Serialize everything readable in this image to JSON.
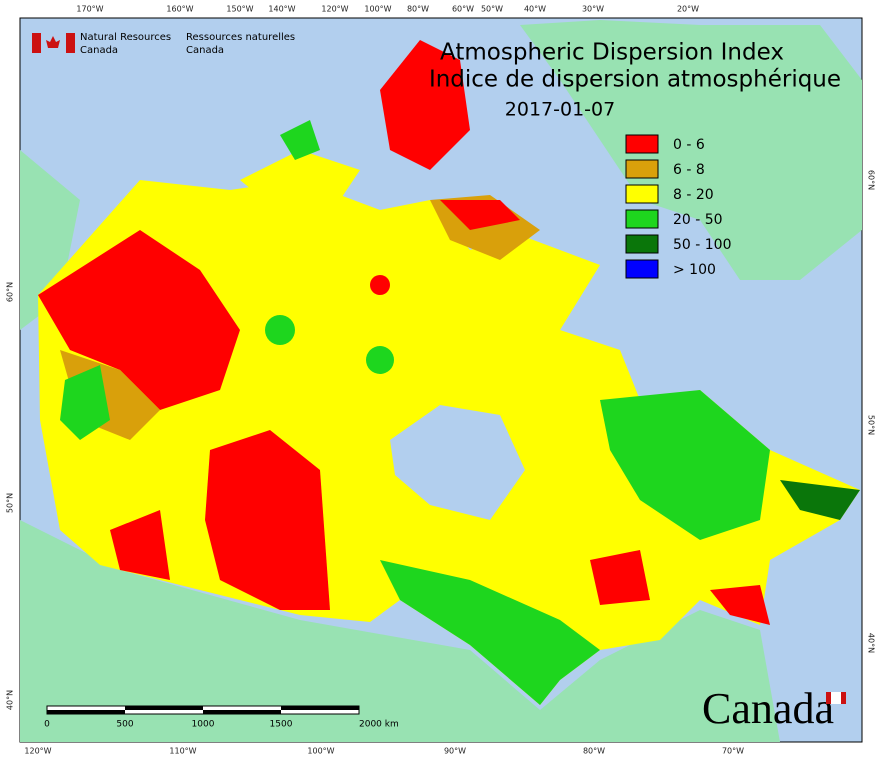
{
  "header": {
    "org_en": [
      "Natural Resources",
      "Canada"
    ],
    "org_fr": [
      "Ressources naturelles",
      "Canada"
    ]
  },
  "title": {
    "en": "Atmospheric Dispersion Index",
    "fr": "Indice de dispersion atmosphérique",
    "date": "2017-01-07"
  },
  "legend": [
    {
      "label": "0 - 6",
      "color": "#ff0000"
    },
    {
      "label": "6 - 8",
      "color": "#d9a00b"
    },
    {
      "label": "8 - 20",
      "color": "#ffff00"
    },
    {
      "label": "20 - 50",
      "color": "#1ed61e"
    },
    {
      "label": "50 - 100",
      "color": "#0a760a"
    },
    {
      "label": "> 100",
      "color": "#0000ff"
    }
  ],
  "graticule": {
    "top": [
      "170°W",
      "160°W",
      "150°W",
      "140°W",
      "120°W",
      "100°W",
      "80°W",
      "60°W",
      "50°W",
      "40°W",
      "30°W",
      "20°W"
    ],
    "bottom": [
      "120°W",
      "110°W",
      "100°W",
      "90°W",
      "80°W",
      "70°W"
    ],
    "left": [
      "60°N",
      "50°N",
      "40°N"
    ],
    "right": [
      "60°N",
      "50°N",
      "40°N"
    ]
  },
  "scale": {
    "ticks": [
      "0",
      "500",
      "1000",
      "1500",
      "2000 km"
    ]
  },
  "wordmark": "Canada"
}
